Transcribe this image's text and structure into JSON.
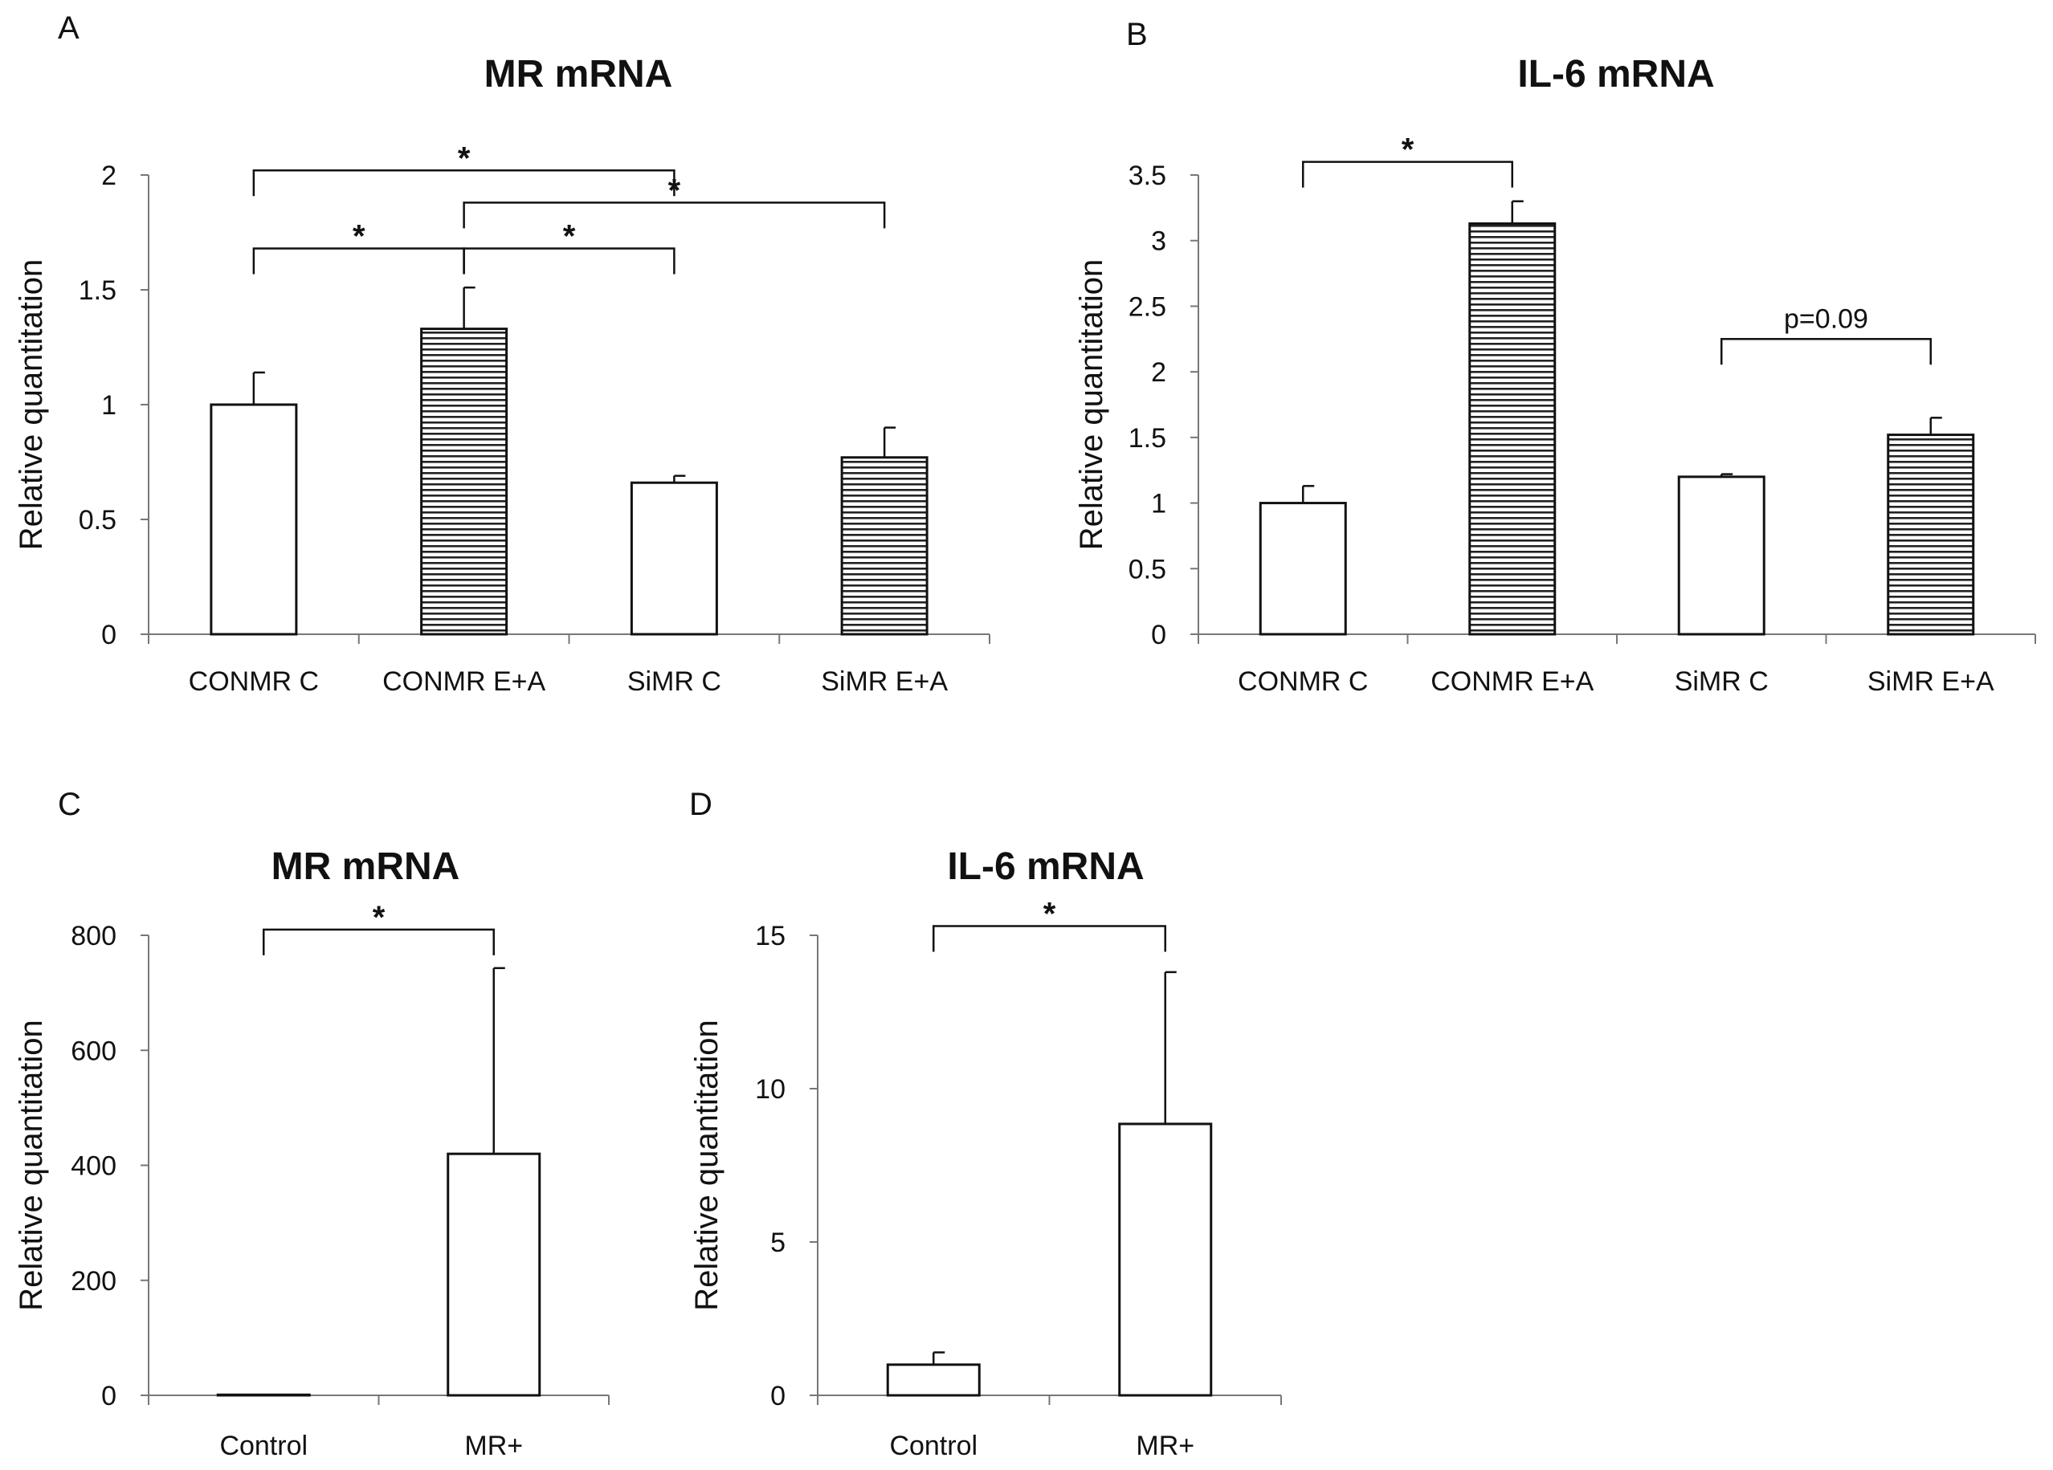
{
  "chart_data": [
    {
      "panel": "A",
      "type": "bar",
      "title": "MR mRNA",
      "ylabel": "Relative quantitation",
      "xlabel": "",
      "ylim": [
        0,
        2
      ],
      "yticks": [
        0,
        0.5,
        1,
        1.5,
        2
      ],
      "ytick_labels": [
        "0",
        "0.5",
        "1",
        "1.5",
        "2"
      ],
      "categories": [
        "CONMR C",
        "CONMR E+A",
        "SiMR C",
        "SiMR E+A"
      ],
      "values": [
        1.0,
        1.33,
        0.66,
        0.77
      ],
      "errors": [
        0.14,
        0.18,
        0.03,
        0.13
      ],
      "patterns": [
        "open",
        "striped",
        "open",
        "striped"
      ],
      "significance": [
        {
          "from": 0,
          "to": 2,
          "label": "*",
          "y": 2.02
        },
        {
          "from": 1,
          "to": 3,
          "label": "*",
          "y": 1.88
        },
        {
          "from": 0,
          "to": 1,
          "label": "*",
          "y": 1.68
        },
        {
          "from": 1,
          "to": 2,
          "label": "*",
          "y": 1.68
        }
      ]
    },
    {
      "panel": "B",
      "type": "bar",
      "title": "IL-6 mRNA",
      "ylabel": "Relative quantitation",
      "xlabel": "",
      "ylim": [
        0,
        3.5
      ],
      "yticks": [
        0,
        0.5,
        1,
        1.5,
        2,
        2.5,
        3,
        3.5
      ],
      "ytick_labels": [
        "0",
        "0.5",
        "1",
        "1.5",
        "2",
        "2.5",
        "3",
        "3.5"
      ],
      "categories": [
        "CONMR C",
        "CONMR E+A",
        "SiMR C",
        "SiMR E+A"
      ],
      "values": [
        1.0,
        3.13,
        1.2,
        1.52
      ],
      "errors": [
        0.13,
        0.17,
        0.02,
        0.13
      ],
      "patterns": [
        "open",
        "striped",
        "open",
        "striped"
      ],
      "significance": [
        {
          "from": 0,
          "to": 1,
          "label": "*",
          "y": 3.6
        },
        {
          "from": 2,
          "to": 3,
          "label": "p=0.09",
          "y": 2.25
        }
      ]
    },
    {
      "panel": "C",
      "type": "bar",
      "title": "MR mRNA",
      "ylabel": "Relative quantitation",
      "xlabel": "",
      "ylim": [
        0,
        800
      ],
      "yticks": [
        0,
        200,
        400,
        600,
        800
      ],
      "ytick_labels": [
        "0",
        "200",
        "400",
        "600",
        "800"
      ],
      "categories": [
        "Control",
        "MR+"
      ],
      "values": [
        1,
        420
      ],
      "errors": [
        0,
        323
      ],
      "patterns": [
        "open",
        "open"
      ],
      "significance": [
        {
          "from": 0,
          "to": 1,
          "label": "*",
          "y": 810
        }
      ]
    },
    {
      "panel": "D",
      "type": "bar",
      "title": "IL-6 mRNA",
      "ylabel": "Relative quantitation",
      "xlabel": "",
      "ylim": [
        0,
        15
      ],
      "yticks": [
        0,
        5,
        10,
        15
      ],
      "ytick_labels": [
        "0",
        "5",
        "10",
        "15"
      ],
      "categories": [
        "Control",
        "MR+"
      ],
      "values": [
        1.0,
        8.85
      ],
      "errors": [
        0.4,
        4.95
      ],
      "patterns": [
        "open",
        "open"
      ],
      "significance": [
        {
          "from": 0,
          "to": 1,
          "label": "*",
          "y": 15.3
        }
      ]
    }
  ],
  "colors": {
    "ink": "#111111",
    "bar_fill": "#ffffff",
    "stripe": "#222222"
  }
}
